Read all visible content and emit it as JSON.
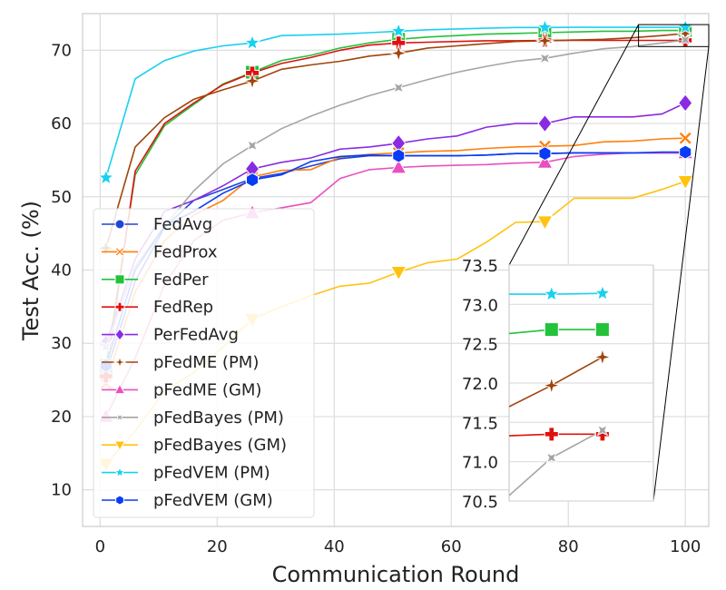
{
  "chart_data": {
    "type": "line",
    "title": "",
    "xlabel": "Communication Round",
    "ylabel": "Test Acc. (%)",
    "xlim": [
      -3,
      104
    ],
    "ylim": [
      5,
      75
    ],
    "xticks": [
      0,
      20,
      40,
      60,
      80,
      100
    ],
    "yticks": [
      10,
      20,
      30,
      40,
      50,
      60,
      70
    ],
    "grid": true,
    "legend_position": "lower-left",
    "series": [
      {
        "name": "FedAvg",
        "color": "#1f45d8",
        "marker": "circle",
        "x": [
          1,
          6,
          11,
          16,
          21,
          26,
          31,
          36,
          41,
          46,
          51,
          56,
          61,
          66,
          71,
          76,
          81,
          86,
          91,
          96,
          100
        ],
        "y": [
          26.0,
          38.5,
          45.8,
          49.5,
          51.0,
          52.5,
          53.2,
          54.2,
          55.2,
          55.6,
          55.6,
          55.6,
          55.6,
          55.7,
          55.9,
          55.9,
          56.0,
          56.0,
          56.0,
          56.0,
          56.0
        ]
      },
      {
        "name": "FedProx",
        "color": "#ff7f0e",
        "marker": "x",
        "x": [
          1,
          6,
          11,
          16,
          21,
          26,
          31,
          36,
          41,
          46,
          51,
          56,
          61,
          66,
          71,
          76,
          81,
          86,
          91,
          96,
          100
        ],
        "y": [
          24.5,
          37.0,
          44.0,
          47.5,
          49.5,
          52.7,
          53.6,
          53.7,
          55.4,
          55.8,
          56.0,
          56.2,
          56.3,
          56.6,
          56.8,
          56.9,
          57.0,
          57.5,
          57.6,
          57.9,
          58.0
        ]
      },
      {
        "name": "FedPer",
        "color": "#22c23a",
        "marker": "square",
        "x": [
          1,
          6,
          11,
          16,
          21,
          26,
          31,
          36,
          41,
          46,
          51,
          56,
          61,
          66,
          71,
          76,
          81,
          86,
          91,
          96,
          100
        ],
        "y": [
          27.0,
          53.0,
          59.7,
          62.6,
          65.4,
          67.0,
          68.6,
          69.3,
          70.3,
          71.0,
          71.5,
          71.8,
          72.0,
          72.2,
          72.3,
          72.4,
          72.5,
          72.6,
          72.6,
          72.7,
          72.7
        ]
      },
      {
        "name": "FedRep",
        "color": "#e01010",
        "marker": "plus",
        "x": [
          1,
          6,
          11,
          16,
          21,
          26,
          31,
          36,
          41,
          46,
          51,
          56,
          61,
          66,
          71,
          76,
          81,
          86,
          91,
          96,
          100
        ],
        "y": [
          25.5,
          53.5,
          60.0,
          62.8,
          65.3,
          66.9,
          68.2,
          69.0,
          70.0,
          70.7,
          71.0,
          71.1,
          71.2,
          71.3,
          71.3,
          71.33,
          71.34,
          71.35,
          71.35,
          71.35,
          71.35
        ]
      },
      {
        "name": "PerFedAvg",
        "color": "#8a2be2",
        "marker": "diamond",
        "x": [
          1,
          6,
          11,
          16,
          21,
          26,
          31,
          36,
          41,
          46,
          51,
          56,
          61,
          66,
          71,
          76,
          81,
          86,
          91,
          96,
          100
        ],
        "y": [
          30.0,
          41.5,
          48.0,
          49.5,
          51.5,
          53.8,
          54.7,
          55.3,
          56.5,
          56.8,
          57.3,
          57.9,
          58.3,
          59.5,
          60.0,
          60.0,
          60.9,
          60.9,
          60.9,
          61.3,
          62.8
        ]
      },
      {
        "name": "pFedME (PM)",
        "color": "#a0440a",
        "marker": "star4",
        "x": [
          1,
          6,
          11,
          16,
          21,
          26,
          31,
          36,
          41,
          46,
          51,
          56,
          61,
          66,
          71,
          76,
          81,
          86,
          91,
          96,
          100
        ],
        "y": [
          43.0,
          56.8,
          60.8,
          63.3,
          64.6,
          65.8,
          67.4,
          68.0,
          68.5,
          69.2,
          69.6,
          70.3,
          70.6,
          70.9,
          71.2,
          71.3,
          71.4,
          71.5,
          71.7,
          72.0,
          72.3
        ]
      },
      {
        "name": "pFedME (GM)",
        "color": "#ea4fbf",
        "marker": "triangle-up",
        "x": [
          1,
          6,
          11,
          16,
          21,
          26,
          31,
          36,
          41,
          46,
          51,
          56,
          61,
          66,
          71,
          76,
          81,
          86,
          91,
          96,
          100
        ],
        "y": [
          20.0,
          28.0,
          38.0,
          44.0,
          46.8,
          47.8,
          48.5,
          49.2,
          52.5,
          53.7,
          54.0,
          54.2,
          54.3,
          54.4,
          54.6,
          54.7,
          55.5,
          55.8,
          56.0,
          56.0,
          56.0
        ]
      },
      {
        "name": "pFedBayes (PM)",
        "color": "#a5a5a5",
        "marker": "x4",
        "x": [
          1,
          6,
          11,
          16,
          21,
          26,
          31,
          36,
          41,
          46,
          51,
          56,
          61,
          66,
          71,
          76,
          81,
          86,
          91,
          96,
          100
        ],
        "y": [
          29.5,
          40.5,
          46.0,
          50.8,
          54.5,
          57.0,
          59.3,
          61.0,
          62.5,
          63.8,
          64.9,
          66.0,
          67.0,
          67.8,
          68.5,
          68.9,
          69.6,
          70.2,
          70.5,
          71.0,
          71.4
        ]
      },
      {
        "name": "pFedBayes (GM)",
        "color": "#ffc20e",
        "marker": "triangle-down",
        "x": [
          1,
          6,
          11,
          16,
          21,
          26,
          31,
          36,
          41,
          46,
          51,
          56,
          61,
          66,
          71,
          76,
          81,
          86,
          91,
          96,
          100
        ],
        "y": [
          13.5,
          18.0,
          23.5,
          26.0,
          29.5,
          33.3,
          35.0,
          36.5,
          37.8,
          38.2,
          39.7,
          41.0,
          41.5,
          43.8,
          46.5,
          46.6,
          49.8,
          49.8,
          49.8,
          51.0,
          52.1
        ]
      },
      {
        "name": "pFedVEM (PM)",
        "color": "#1ad0f0",
        "marker": "star5",
        "x": [
          1,
          6,
          11,
          16,
          21,
          26,
          31,
          36,
          41,
          46,
          51,
          56,
          61,
          66,
          71,
          76,
          81,
          86,
          91,
          96,
          100
        ],
        "y": [
          52.6,
          66.1,
          68.6,
          69.9,
          70.6,
          71.0,
          72.0,
          72.1,
          72.2,
          72.4,
          72.6,
          72.8,
          72.9,
          73.0,
          73.1,
          73.1,
          73.13,
          73.13,
          73.13,
          73.13,
          73.14
        ]
      },
      {
        "name": "pFedVEM (GM)",
        "color": "#0a3cf5",
        "marker": "hexagon",
        "x": [
          1,
          6,
          11,
          16,
          21,
          26,
          31,
          36,
          41,
          46,
          51,
          56,
          61,
          66,
          71,
          76,
          81,
          86,
          91,
          96,
          100
        ],
        "y": [
          27.0,
          40.0,
          46.0,
          48.0,
          50.5,
          52.3,
          53.0,
          54.8,
          55.5,
          55.7,
          55.6,
          55.6,
          55.6,
          55.7,
          55.9,
          55.9,
          56.0,
          56.0,
          56.0,
          56.1,
          56.1
        ]
      }
    ],
    "inset": {
      "xlim": [
        70,
        104
      ],
      "ylim": [
        70.5,
        73.5
      ],
      "yticks": [
        70.5,
        71.0,
        71.5,
        72.0,
        72.5,
        73.0,
        73.5
      ],
      "ytick_labels": [
        "70.5",
        "71.0",
        "71.5",
        "72.0",
        "72.5",
        "73.0",
        "73.5"
      ],
      "zoom_region_x": [
        92,
        104
      ],
      "zoom_region_y": [
        70.5,
        73.5
      ],
      "series": [
        {
          "name": "pFedVEM (PM)",
          "x": [
            70,
            80,
            92
          ],
          "y": [
            73.13,
            73.13,
            73.14
          ],
          "marker_x": [
            80,
            92
          ]
        },
        {
          "name": "FedPer",
          "x": [
            70,
            80,
            92
          ],
          "y": [
            72.63,
            72.68,
            72.68
          ],
          "marker_x": [
            80,
            92
          ]
        },
        {
          "name": "pFedME (PM)",
          "x": [
            70,
            80,
            92
          ],
          "y": [
            71.7,
            71.97,
            72.33
          ],
          "marker_x": [
            80,
            92
          ]
        },
        {
          "name": "FedRep",
          "x": [
            70,
            80,
            92
          ],
          "y": [
            71.33,
            71.35,
            71.35
          ],
          "marker_x": [
            80,
            92
          ]
        },
        {
          "name": "pFedBayes (PM)",
          "x": [
            70,
            80,
            92
          ],
          "y": [
            70.57,
            71.05,
            71.4
          ],
          "marker_x": [
            80,
            92
          ]
        }
      ]
    }
  }
}
